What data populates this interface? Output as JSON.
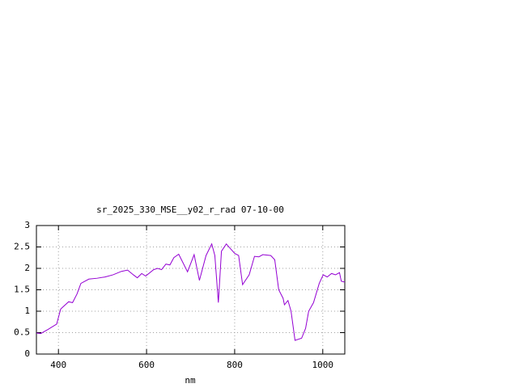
{
  "chart_data": {
    "type": "line",
    "title": "sr_2025_330_MSE__y02_r_rad 07-10-00",
    "x_label": "nm",
    "x": [
      350,
      360,
      377,
      396,
      405,
      423,
      432,
      442,
      451,
      469,
      488,
      506,
      524,
      543,
      557,
      570,
      579,
      589,
      598,
      616,
      625,
      634,
      644,
      653,
      662,
      673,
      693,
      708,
      720,
      735,
      748,
      755,
      763,
      770,
      781,
      800,
      809,
      818,
      833,
      845,
      855,
      864,
      882,
      891,
      900,
      910,
      913,
      921,
      928,
      937,
      952,
      961,
      968,
      979,
      992,
      1001,
      1010,
      1020,
      1029,
      1038,
      1042,
      1050
    ],
    "series": [
      {
        "name": "sr_2025_330_MSE__y02_r_rad",
        "color": "#9400d3",
        "values": [
          0.49,
          0.48,
          0.58,
          0.7,
          1.05,
          1.22,
          1.2,
          1.4,
          1.65,
          1.75,
          1.77,
          1.8,
          1.85,
          1.93,
          1.96,
          1.85,
          1.78,
          1.88,
          1.82,
          1.97,
          2.0,
          1.97,
          2.1,
          2.08,
          2.25,
          2.33,
          1.92,
          2.32,
          1.72,
          2.3,
          2.57,
          2.3,
          1.2,
          2.4,
          2.57,
          2.35,
          2.3,
          1.62,
          1.85,
          2.28,
          2.27,
          2.32,
          2.3,
          2.2,
          1.5,
          1.3,
          1.15,
          1.25,
          1.0,
          0.32,
          0.37,
          0.6,
          1.0,
          1.2,
          1.65,
          1.85,
          1.8,
          1.88,
          1.85,
          1.9,
          1.7,
          1.68
        ]
      }
    ],
    "xlim": [
      350,
      1050
    ],
    "xticks": [
      400,
      600,
      800,
      1000
    ],
    "ylim": [
      0,
      3
    ],
    "yticks": [
      0,
      0.5,
      1,
      1.5,
      2,
      2.5,
      3
    ],
    "grid": true
  }
}
